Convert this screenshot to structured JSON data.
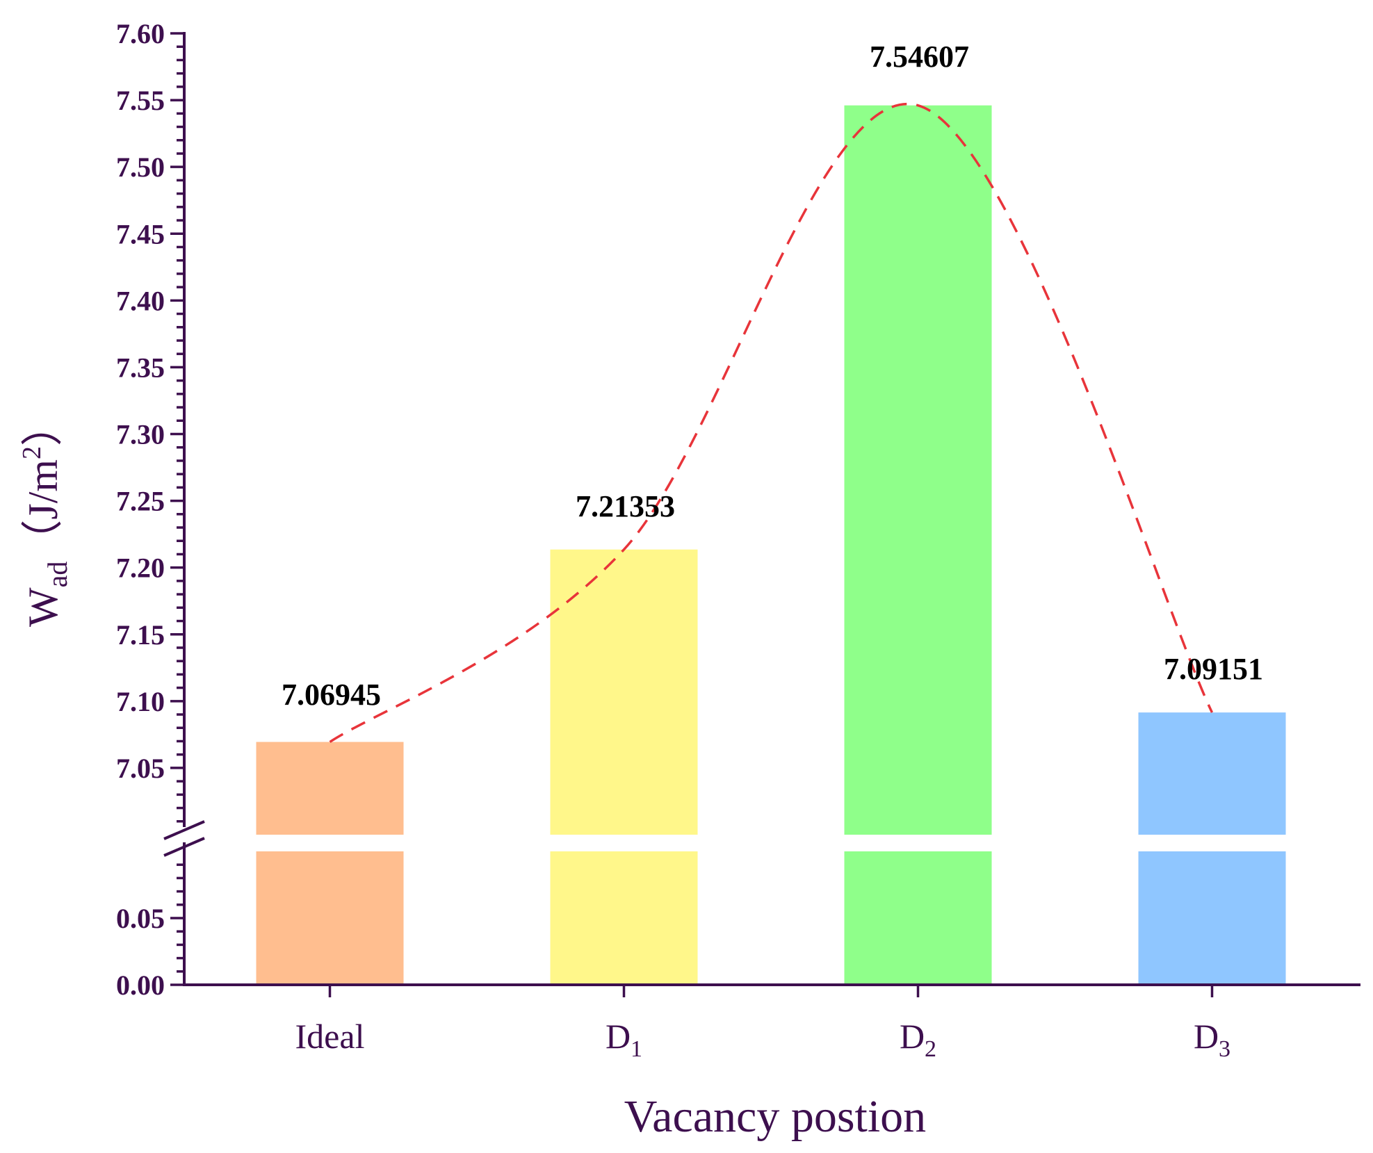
{
  "chart_data": {
    "type": "bar",
    "xlabel": "Vacancy postion",
    "ylabel": {
      "main": "W",
      "sub": "ad",
      "unit_open": "（J/m",
      "unit_sup": "2",
      "unit_close": "）"
    },
    "categories": [
      {
        "main": "Ideal",
        "sub": ""
      },
      {
        "main": "D",
        "sub": "1"
      },
      {
        "main": "D",
        "sub": "2"
      },
      {
        "main": "D",
        "sub": "3"
      }
    ],
    "values": [
      7.06945,
      7.21353,
      7.54607,
      7.09151
    ],
    "value_labels": [
      "7.06945",
      "7.21353",
      "7.54607",
      "7.09151"
    ],
    "bar_colors": [
      "#ffbe8f",
      "#fff78a",
      "#8fff8a",
      "#8fc6ff"
    ],
    "trend_line": {
      "style": "dashed",
      "color": "#e8343a"
    },
    "axis_break": true,
    "y_segments": [
      {
        "range": [
          0.0,
          0.1
        ],
        "ticks": [
          "0.00",
          "0.05"
        ]
      },
      {
        "range": [
          7.0,
          7.6
        ],
        "ticks": [
          "7.05",
          "7.10",
          "7.15",
          "7.20",
          "7.25",
          "7.30",
          "7.35",
          "7.40",
          "7.45",
          "7.50",
          "7.55",
          "7.60"
        ]
      }
    ],
    "axis_color": "#3d0f4e",
    "grid": false
  }
}
